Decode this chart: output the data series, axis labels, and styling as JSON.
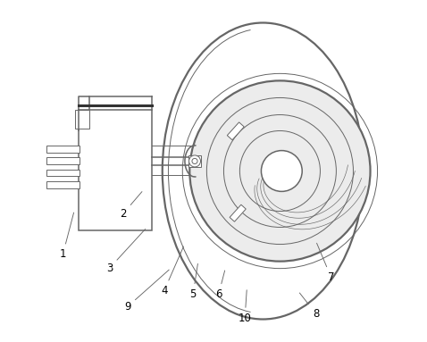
{
  "bg_color": "#ffffff",
  "line_color": "#666666",
  "figsize": [
    4.78,
    3.83
  ],
  "dpi": 100,
  "labels": {
    "1": [
      0.058,
      0.255,
      0.092,
      0.385
    ],
    "2": [
      0.235,
      0.375,
      0.295,
      0.445
    ],
    "3": [
      0.195,
      0.215,
      0.305,
      0.335
    ],
    "4": [
      0.355,
      0.148,
      0.415,
      0.285
    ],
    "5": [
      0.44,
      0.138,
      0.455,
      0.235
    ],
    "6": [
      0.515,
      0.138,
      0.535,
      0.215
    ],
    "7": [
      0.845,
      0.188,
      0.8,
      0.295
    ],
    "8": [
      0.8,
      0.082,
      0.748,
      0.148
    ],
    "9": [
      0.248,
      0.102,
      0.375,
      0.215
    ],
    "10": [
      0.592,
      0.068,
      0.598,
      0.158
    ]
  }
}
